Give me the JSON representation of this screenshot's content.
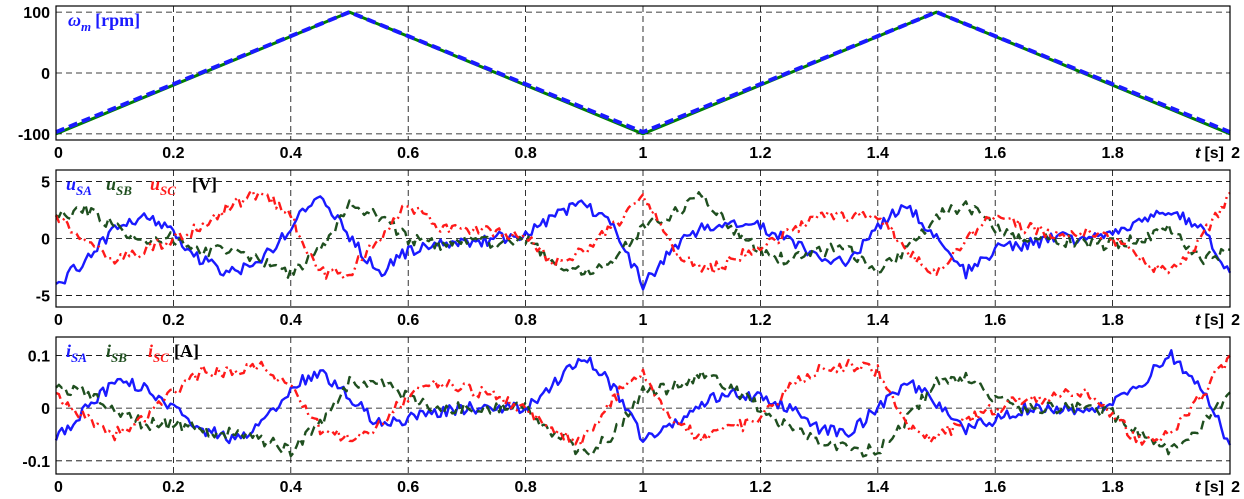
{
  "chart_data": [
    {
      "type": "line",
      "xlim": [
        0,
        2
      ],
      "ylim": [
        -110,
        110
      ],
      "yticks": [
        100,
        0,
        -100
      ],
      "ytick_labels": [
        "100",
        "0",
        "-100"
      ],
      "xticks": [
        0,
        0.2,
        0.4,
        0.6,
        0.8,
        1,
        1.2,
        1.4,
        1.6,
        1.8,
        2
      ],
      "xtick_labels": [
        "0",
        "0.2",
        "0.4",
        "0.6",
        "0.8",
        "1",
        "1.2",
        "1.4",
        "1.6",
        "1.8",
        "2"
      ],
      "xlabel_var": "t",
      "xlabel_unit": "[s]",
      "grid": true,
      "label": {
        "main": "ω",
        "sub": "m",
        "unit": "[rpm]",
        "color": "#1a1aff"
      },
      "series": [
        {
          "key": "ref",
          "color": "#008000",
          "style": "solid",
          "x": [
            0,
            0.5,
            1,
            1.5,
            2
          ],
          "y": [
            -100,
            100,
            -100,
            100,
            -100
          ]
        },
        {
          "key": "meas",
          "color": "#1a1aff",
          "style": "dashed",
          "x": [
            0,
            0.5,
            1,
            1.5,
            2
          ],
          "y": [
            -97,
            100,
            -97,
            100,
            -97
          ]
        }
      ]
    },
    {
      "type": "line",
      "xlim": [
        0,
        2
      ],
      "ylim": [
        -6,
        6
      ],
      "yticks": [
        5,
        0,
        -5
      ],
      "ytick_labels": [
        "5",
        "0",
        "-5"
      ],
      "xticks": [
        0,
        0.2,
        0.4,
        0.6,
        0.8,
        1,
        1.2,
        1.4,
        1.6,
        1.8,
        2
      ],
      "xtick_labels": [
        "0",
        "0.2",
        "0.4",
        "0.6",
        "0.8",
        "1",
        "1.2",
        "1.4",
        "1.6",
        "1.8",
        "2"
      ],
      "xlabel_var": "t",
      "xlabel_unit": "[s]",
      "grid": true,
      "legend": [
        {
          "main": "u",
          "sub": "SA",
          "color": "#1a1aff"
        },
        {
          "main": "u",
          "sub": "SB",
          "color": "#1f4f1f"
        },
        {
          "main": "u",
          "sub": "SC",
          "color": "#ff1a1a"
        }
      ],
      "unit": "[V]",
      "series": [
        {
          "key": "uSA",
          "color": "#1a1aff",
          "style": "solid",
          "x": [
            0,
            0.05,
            0.1,
            0.15,
            0.2,
            0.25,
            0.3,
            0.35,
            0.4,
            0.45,
            0.5,
            0.55,
            0.6,
            0.65,
            0.7,
            0.75,
            0.8,
            0.85,
            0.9,
            0.95,
            1,
            1.05,
            1.1,
            1.15,
            1.2,
            1.25,
            1.3,
            1.35,
            1.4,
            1.45,
            1.5,
            1.55,
            1.6,
            1.65,
            1.7,
            1.75,
            1.8,
            1.85,
            1.9,
            1.95,
            2
          ],
          "y": [
            -4,
            -2,
            1,
            2,
            0.5,
            -2,
            -3,
            -2,
            1,
            4,
            0,
            -3,
            -1,
            -0.5,
            -0.5,
            0,
            0.5,
            2,
            3,
            1,
            -4,
            -1,
            1,
            1.5,
            1,
            0,
            -2,
            -2,
            1,
            3,
            0,
            -3,
            -1,
            -0.5,
            0,
            0,
            0.5,
            1.5,
            2.5,
            1,
            -3
          ]
        },
        {
          "key": "uSB",
          "color": "#1f4f1f",
          "style": "dashed",
          "x": [
            0,
            0.05,
            0.1,
            0.15,
            0.2,
            0.25,
            0.3,
            0.35,
            0.4,
            0.45,
            0.5,
            0.55,
            0.6,
            0.65,
            0.7,
            0.75,
            0.8,
            0.85,
            0.9,
            0.95,
            1,
            1.05,
            1.1,
            1.15,
            1.2,
            1.25,
            1.3,
            1.35,
            1.4,
            1.45,
            1.5,
            1.55,
            1.6,
            1.65,
            1.7,
            1.75,
            1.8,
            1.85,
            1.9,
            1.95,
            2
          ],
          "y": [
            2,
            2.5,
            1,
            0,
            0,
            -1,
            -1,
            -2,
            -3,
            -1,
            3,
            2,
            0,
            -0.5,
            0,
            -0.5,
            0,
            -2,
            -3,
            -2,
            1,
            2,
            4,
            1,
            -1,
            -2,
            -1,
            -1,
            -3,
            -1,
            2,
            3,
            1,
            0,
            0,
            -0.5,
            -0.5,
            0,
            1,
            -2,
            -1
          ]
        },
        {
          "key": "uSC",
          "color": "#ff1a1a",
          "style": "dashdot",
          "x": [
            0,
            0.05,
            0.1,
            0.15,
            0.2,
            0.25,
            0.3,
            0.35,
            0.4,
            0.45,
            0.5,
            0.55,
            0.6,
            0.65,
            0.7,
            0.75,
            0.8,
            0.85,
            0.9,
            0.95,
            1,
            1.05,
            1.1,
            1.15,
            1.2,
            1.25,
            1.3,
            1.35,
            1.4,
            1.45,
            1.5,
            1.55,
            1.6,
            1.65,
            1.7,
            1.75,
            1.8,
            1.85,
            1.9,
            1.95,
            2
          ],
          "y": [
            2,
            0,
            -2,
            -1,
            0,
            1,
            3,
            4,
            2,
            -3,
            -3,
            0,
            3,
            1,
            1,
            0.5,
            0,
            -2,
            -1,
            1,
            4,
            -1,
            -3,
            -2,
            -0.5,
            0.5,
            2,
            2,
            2,
            -1,
            -3,
            0,
            2,
            1,
            0.5,
            0.5,
            0,
            -2,
            -3,
            0,
            4
          ]
        }
      ]
    },
    {
      "type": "line",
      "xlim": [
        0,
        2
      ],
      "ylim": [
        -0.125,
        0.135
      ],
      "yticks": [
        0.1,
        0,
        -0.1
      ],
      "ytick_labels": [
        "0.1",
        "0",
        "-0.1"
      ],
      "xticks": [
        0,
        0.2,
        0.4,
        0.6,
        0.8,
        1,
        1.2,
        1.4,
        1.6,
        1.8,
        2
      ],
      "xtick_labels": [
        "0",
        "0.2",
        "0.4",
        "0.6",
        "0.8",
        "1",
        "1.2",
        "1.4",
        "1.6",
        "1.8",
        "2"
      ],
      "xlabel_var": "t",
      "xlabel_unit": "[s]",
      "grid": true,
      "legend": [
        {
          "main": "i",
          "sub": "SA",
          "color": "#1a1aff"
        },
        {
          "main": "i",
          "sub": "SB",
          "color": "#1f4f1f"
        },
        {
          "main": "i",
          "sub": "SC",
          "color": "#ff1a1a"
        }
      ],
      "unit": "[A]",
      "series": [
        {
          "key": "iSA",
          "color": "#1a1aff",
          "style": "solid",
          "x": [
            0,
            0.05,
            0.1,
            0.15,
            0.2,
            0.25,
            0.3,
            0.35,
            0.4,
            0.45,
            0.5,
            0.55,
            0.6,
            0.65,
            0.7,
            0.75,
            0.8,
            0.85,
            0.9,
            0.95,
            1,
            1.05,
            1.1,
            1.15,
            1.2,
            1.25,
            1.3,
            1.35,
            1.4,
            1.45,
            1.5,
            1.55,
            1.6,
            1.65,
            1.7,
            1.75,
            1.8,
            1.85,
            1.9,
            1.95,
            2
          ],
          "y": [
            -0.06,
            0,
            0.05,
            0.04,
            0,
            -0.04,
            -0.06,
            -0.03,
            0.04,
            0.07,
            0.02,
            -0.03,
            -0.02,
            -0.01,
            0,
            0,
            0,
            0.05,
            0.1,
            0.04,
            -0.06,
            -0.03,
            0.01,
            0.03,
            0.02,
            0,
            -0.04,
            -0.05,
            0,
            0.05,
            0.01,
            -0.04,
            -0.02,
            0,
            0,
            0,
            0.01,
            0.05,
            0.1,
            0.04,
            -0.07
          ]
        },
        {
          "key": "iSB",
          "color": "#1f4f1f",
          "style": "dashed",
          "x": [
            0,
            0.05,
            0.1,
            0.15,
            0.2,
            0.25,
            0.3,
            0.35,
            0.4,
            0.45,
            0.5,
            0.55,
            0.6,
            0.65,
            0.7,
            0.75,
            0.8,
            0.85,
            0.9,
            0.95,
            1,
            1.05,
            1.1,
            1.15,
            1.2,
            1.25,
            1.3,
            1.35,
            1.4,
            1.45,
            1.5,
            1.55,
            1.6,
            1.65,
            1.7,
            1.75,
            1.8,
            1.85,
            1.9,
            1.95,
            2
          ],
          "y": [
            0.04,
            0.03,
            0,
            -0.03,
            -0.03,
            -0.04,
            -0.05,
            -0.06,
            -0.08,
            -0.03,
            0.05,
            0.05,
            0.02,
            0,
            0,
            0,
            0,
            -0.05,
            -0.09,
            -0.05,
            0.03,
            0.04,
            0.06,
            0.04,
            0,
            -0.04,
            -0.06,
            -0.08,
            -0.08,
            -0.02,
            0.05,
            0.06,
            0.02,
            0,
            0,
            0,
            -0.01,
            -0.05,
            -0.08,
            -0.04,
            0.03
          ]
        },
        {
          "key": "iSC",
          "color": "#ff1a1a",
          "style": "dashdot",
          "x": [
            0,
            0.05,
            0.1,
            0.15,
            0.2,
            0.25,
            0.3,
            0.35,
            0.4,
            0.45,
            0.5,
            0.55,
            0.6,
            0.65,
            0.7,
            0.75,
            0.8,
            0.85,
            0.9,
            0.95,
            1,
            1.05,
            1.1,
            1.15,
            1.2,
            1.25,
            1.3,
            1.35,
            1.4,
            1.45,
            1.5,
            1.55,
            1.6,
            1.65,
            1.7,
            1.75,
            1.8,
            1.85,
            1.9,
            1.95,
            2
          ],
          "y": [
            0.03,
            -0.02,
            -0.05,
            -0.02,
            0.03,
            0.07,
            0.07,
            0.08,
            0.04,
            -0.04,
            -0.06,
            -0.03,
            0.02,
            0.05,
            0.04,
            0.02,
            0,
            -0.05,
            -0.06,
            0.02,
            0.07,
            -0.02,
            -0.06,
            -0.04,
            -0.02,
            0.04,
            0.07,
            0.08,
            0.07,
            -0.03,
            -0.06,
            -0.02,
            0,
            0.02,
            0.02,
            0.03,
            -0.01,
            -0.07,
            -0.05,
            0.02,
            0.1
          ]
        }
      ]
    }
  ]
}
